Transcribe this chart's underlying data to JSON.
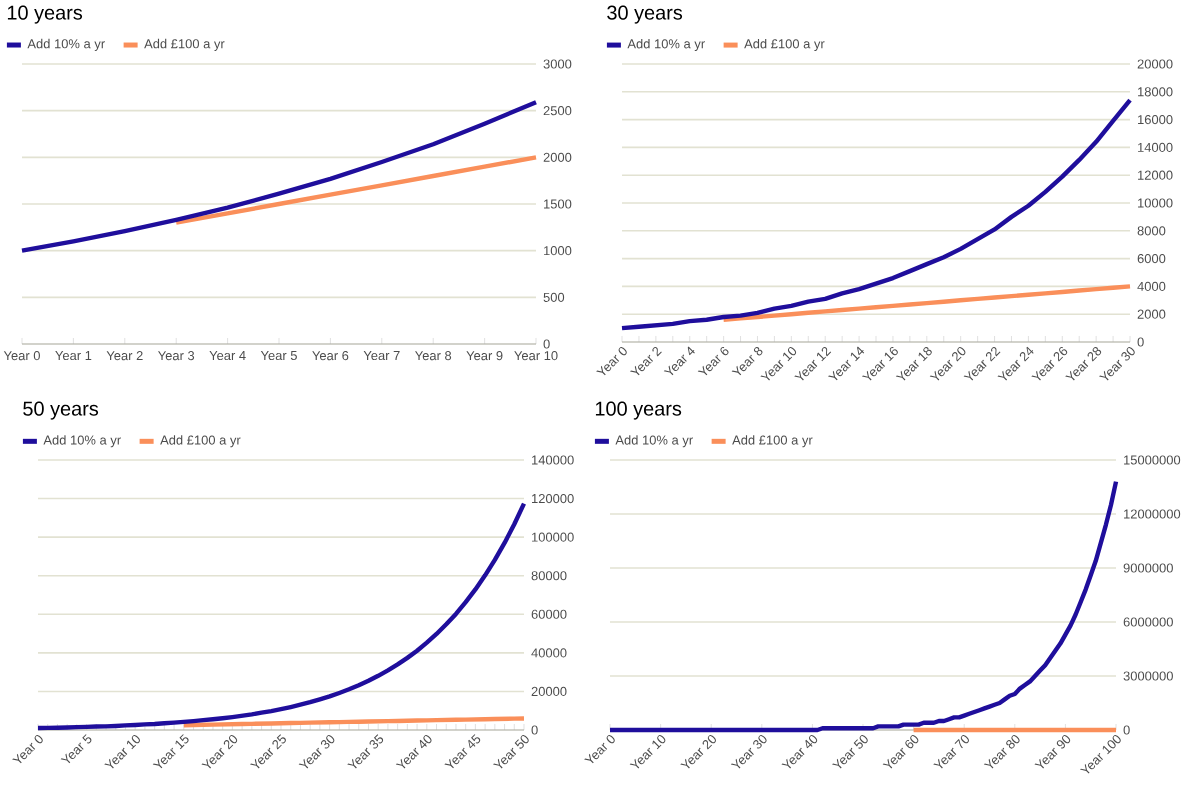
{
  "chart_data": [
    {
      "type": "line",
      "title": "10 years",
      "legend": "top left",
      "grid": "y",
      "categories": [
        "Year 0",
        "Year 1",
        "Year 2",
        "Year 3",
        "Year 4",
        "Year 5",
        "Year 6",
        "Year 7",
        "Year 8",
        "Year 9",
        "Year 10"
      ],
      "series": [
        {
          "name": "Add 10% a yr",
          "color": "#1f0e9c",
          "values": [
            1000,
            1100,
            1210,
            1330,
            1460,
            1610,
            1770,
            1950,
            2140,
            2360,
            2590
          ]
        },
        {
          "name": "Add £100 a yr",
          "color": "#fa8f5a",
          "values": [
            null,
            null,
            null,
            1300,
            1400,
            1500,
            1600,
            1700,
            1800,
            1900,
            2000
          ]
        }
      ],
      "ylim": [
        0,
        3000
      ],
      "yticks": [
        0,
        500,
        1000,
        1500,
        2000,
        2500,
        3000
      ]
    },
    {
      "type": "line",
      "title": "30 years",
      "legend": "top left",
      "grid": "y",
      "categories": [
        "Year 0",
        null,
        "Year 2",
        null,
        "Year 4",
        null,
        "Year 6",
        null,
        "Year 8",
        null,
        "Year 10",
        null,
        "Year 12",
        null,
        "Year 14",
        null,
        "Year 16",
        null,
        "Year 18",
        null,
        "Year 20",
        null,
        "Year 22",
        null,
        "Year 24",
        null,
        "Year 26",
        null,
        "Year 28",
        null,
        "Year 30"
      ],
      "series": [
        {
          "name": "Add 10% a yr",
          "color": "#1f0e9c",
          "values": [
            1000,
            1100,
            1200,
            1300,
            1500,
            1600,
            1800,
            1900,
            2100,
            2400,
            2600,
            2900,
            3100,
            3500,
            3800,
            4200,
            4600,
            5100,
            5600,
            6100,
            6700,
            7400,
            8100,
            9000,
            9800,
            10800,
            11900,
            13100,
            14400,
            15900,
            17400
          ]
        },
        {
          "name": "Add £100 a yr",
          "color": "#fa8f5a",
          "values": [
            null,
            null,
            null,
            null,
            null,
            null,
            1600,
            1700,
            1800,
            1900,
            2000,
            2100,
            2200,
            2300,
            2400,
            2500,
            2600,
            2700,
            2800,
            2900,
            3000,
            3100,
            3200,
            3300,
            3400,
            3500,
            3600,
            3700,
            3800,
            3900,
            4000
          ]
        }
      ],
      "ylim": [
        0,
        20000
      ],
      "yticks": [
        0,
        2000,
        4000,
        6000,
        8000,
        10000,
        12000,
        14000,
        16000,
        18000,
        20000
      ]
    },
    {
      "type": "line",
      "title": "50 years",
      "legend": "top left",
      "grid": "y",
      "categories": [
        "Year 0",
        null,
        null,
        null,
        null,
        "Year 5",
        null,
        null,
        null,
        null,
        "Year 10",
        null,
        null,
        null,
        null,
        "Year 15",
        null,
        null,
        null,
        null,
        "Year 20",
        null,
        null,
        null,
        null,
        "Year 25",
        null,
        null,
        null,
        null,
        "Year 30",
        null,
        null,
        null,
        null,
        "Year 35",
        null,
        null,
        null,
        null,
        "Year 40",
        null,
        null,
        null,
        null,
        "Year 45",
        null,
        null,
        null,
        null,
        "Year 50"
      ],
      "series": [
        {
          "name": "Add 10% a yr",
          "color": "#1f0e9c",
          "values": [
            1000,
            1100,
            1200,
            1300,
            1500,
            1600,
            1800,
            1900,
            2100,
            2400,
            2600,
            2900,
            3100,
            3500,
            3800,
            4200,
            4600,
            5100,
            5600,
            6100,
            6700,
            7400,
            8100,
            9000,
            9800,
            10800,
            11900,
            13100,
            14400,
            15900,
            17400,
            19200,
            21100,
            23200,
            25500,
            28100,
            30900,
            34000,
            37400,
            41100,
            45300,
            49800,
            54800,
            60200,
            66300,
            72900,
            80200,
            88200,
            97000,
            106700,
            117400
          ]
        },
        {
          "name": "Add £100 a yr",
          "color": "#fa8f5a",
          "values": [
            null,
            null,
            null,
            null,
            null,
            null,
            null,
            null,
            null,
            null,
            null,
            null,
            null,
            null,
            null,
            2500,
            2600,
            2700,
            2800,
            2900,
            3000,
            3100,
            3200,
            3300,
            3400,
            3500,
            3600,
            3700,
            3800,
            3900,
            4000,
            4100,
            4200,
            4300,
            4400,
            4500,
            4600,
            4700,
            4800,
            4900,
            5000,
            5100,
            5200,
            5300,
            5400,
            5500,
            5600,
            5700,
            5800,
            5900,
            6000
          ]
        }
      ],
      "ylim": [
        0,
        140000
      ],
      "yticks": [
        0,
        20000,
        40000,
        60000,
        80000,
        100000,
        120000,
        140000
      ]
    },
    {
      "type": "line",
      "title": "100 years",
      "legend": "top left",
      "grid": "y",
      "categories": [
        "Year 0",
        null,
        null,
        null,
        null,
        null,
        null,
        null,
        null,
        null,
        "Year 10",
        null,
        null,
        null,
        null,
        null,
        null,
        null,
        null,
        null,
        "Year 20",
        null,
        null,
        null,
        null,
        null,
        null,
        null,
        null,
        null,
        "Year 30",
        null,
        null,
        null,
        null,
        null,
        null,
        null,
        null,
        null,
        "Year 40",
        null,
        null,
        null,
        null,
        null,
        null,
        null,
        null,
        null,
        "Year 50",
        null,
        null,
        null,
        null,
        null,
        null,
        null,
        null,
        null,
        "Year 60",
        null,
        null,
        null,
        null,
        null,
        null,
        null,
        null,
        null,
        "Year 70",
        null,
        null,
        null,
        null,
        null,
        null,
        null,
        null,
        null,
        "Year 80",
        null,
        null,
        null,
        null,
        null,
        null,
        null,
        null,
        null,
        "Year 90",
        null,
        null,
        null,
        null,
        null,
        null,
        null,
        null,
        null,
        "Year 100"
      ],
      "series": [
        {
          "name": "Add 10% a yr",
          "color": "#1f0e9c",
          "values": [
            0,
            0,
            0,
            0,
            0,
            0,
            0,
            0,
            0,
            0,
            0,
            0,
            0,
            0,
            0,
            0,
            0,
            0,
            0,
            0,
            0,
            0,
            0,
            0,
            0,
            0,
            0,
            0,
            0,
            0,
            0,
            0,
            0,
            0,
            0,
            0,
            0,
            0,
            0,
            0,
            0,
            0,
            100000,
            100000,
            100000,
            100000,
            100000,
            100000,
            100000,
            100000,
            100000,
            100000,
            100000,
            200000,
            200000,
            200000,
            200000,
            200000,
            300000,
            300000,
            300000,
            300000,
            400000,
            400000,
            400000,
            500000,
            500000,
            600000,
            700000,
            700000,
            800000,
            900000,
            1000000,
            1100000,
            1200000,
            1300000,
            1400000,
            1500000,
            1700000,
            1900000,
            2000000,
            2300000,
            2500000,
            2700000,
            3000000,
            3300000,
            3600000,
            4000000,
            4400000,
            4800000,
            5300000,
            5800000,
            6400000,
            7100000,
            7800000,
            8600000,
            9400000,
            10400000,
            11400000,
            12500000,
            13800000
          ]
        },
        {
          "name": "Add £100 a yr",
          "color": "#fa8f5a",
          "values": [
            null,
            null,
            null,
            null,
            null,
            null,
            null,
            null,
            null,
            null,
            null,
            null,
            null,
            null,
            null,
            null,
            null,
            null,
            null,
            null,
            null,
            null,
            null,
            null,
            null,
            null,
            null,
            null,
            null,
            null,
            null,
            null,
            null,
            null,
            null,
            null,
            null,
            null,
            null,
            null,
            null,
            null,
            null,
            null,
            null,
            null,
            null,
            null,
            null,
            null,
            null,
            null,
            null,
            null,
            null,
            null,
            null,
            null,
            null,
            null,
            0,
            0,
            0,
            0,
            0,
            0,
            0,
            0,
            0,
            0,
            0,
            0,
            0,
            0,
            0,
            0,
            0,
            0,
            0,
            0,
            0,
            0,
            0,
            0,
            0,
            0,
            0,
            0,
            0,
            0,
            0,
            0,
            0,
            0,
            0,
            0,
            0,
            0,
            0,
            0,
            0
          ]
        }
      ],
      "ylim": [
        0,
        15000000
      ],
      "yticks": [
        0,
        3000000,
        6000000,
        9000000,
        12000000,
        15000000
      ]
    }
  ]
}
